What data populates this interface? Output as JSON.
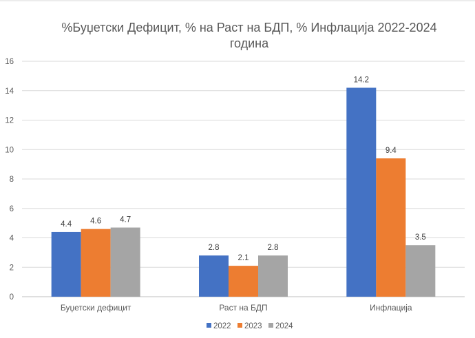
{
  "chart_data": {
    "type": "bar",
    "title_lines": [
      "%Буџетски Дефицит, % на Раст на БДП, % Инфлација 2022-2024",
      "година"
    ],
    "categories": [
      "Буџетски дефицит",
      "Раст на БДП",
      "Инфлација"
    ],
    "series": [
      {
        "name": "2022",
        "color": "#4472C4",
        "values": [
          4.4,
          2.8,
          14.2
        ]
      },
      {
        "name": "2023",
        "color": "#ED7D31",
        "values": [
          4.6,
          2.1,
          9.4
        ]
      },
      {
        "name": "2024",
        "color": "#A5A5A5",
        "values": [
          4.7,
          2.8,
          3.5
        ]
      }
    ],
    "ylim": [
      0,
      16
    ],
    "yticks": [
      "0",
      "2",
      "4",
      "6",
      "8",
      "10",
      "12",
      "14",
      "16"
    ],
    "grid": true,
    "legend_position": "bottom"
  }
}
